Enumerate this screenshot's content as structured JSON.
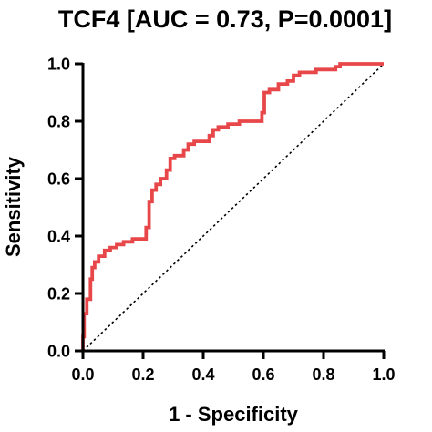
{
  "chart_data": {
    "type": "line",
    "title": "TCF4 [AUC = 0.73, P=0.0001]",
    "xlabel": "1 - Specificity",
    "ylabel": "Sensitivity",
    "xlim": [
      0,
      1
    ],
    "ylim": [
      0,
      1
    ],
    "x_ticks": [
      "0.0",
      "0.2",
      "0.4",
      "0.6",
      "0.8",
      "1.0"
    ],
    "y_ticks": [
      "0.0",
      "0.2",
      "0.4",
      "0.6",
      "0.8",
      "1.0"
    ],
    "grid": false,
    "series": [
      {
        "color": "#e8474a",
        "style": "step",
        "points": [
          [
            0.0,
            0.0
          ],
          [
            0.0,
            0.05
          ],
          [
            0.004,
            0.05
          ],
          [
            0.004,
            0.13
          ],
          [
            0.013,
            0.13
          ],
          [
            0.013,
            0.18
          ],
          [
            0.025,
            0.18
          ],
          [
            0.025,
            0.25
          ],
          [
            0.031,
            0.25
          ],
          [
            0.031,
            0.29
          ],
          [
            0.039,
            0.29
          ],
          [
            0.039,
            0.31
          ],
          [
            0.052,
            0.31
          ],
          [
            0.052,
            0.33
          ],
          [
            0.072,
            0.33
          ],
          [
            0.072,
            0.35
          ],
          [
            0.091,
            0.35
          ],
          [
            0.091,
            0.36
          ],
          [
            0.112,
            0.36
          ],
          [
            0.112,
            0.37
          ],
          [
            0.135,
            0.37
          ],
          [
            0.135,
            0.38
          ],
          [
            0.165,
            0.38
          ],
          [
            0.165,
            0.39
          ],
          [
            0.21,
            0.39
          ],
          [
            0.21,
            0.43
          ],
          [
            0.22,
            0.43
          ],
          [
            0.22,
            0.52
          ],
          [
            0.23,
            0.52
          ],
          [
            0.23,
            0.56
          ],
          [
            0.243,
            0.56
          ],
          [
            0.243,
            0.58
          ],
          [
            0.258,
            0.58
          ],
          [
            0.258,
            0.6
          ],
          [
            0.278,
            0.6
          ],
          [
            0.278,
            0.63
          ],
          [
            0.29,
            0.63
          ],
          [
            0.29,
            0.67
          ],
          [
            0.305,
            0.67
          ],
          [
            0.305,
            0.68
          ],
          [
            0.335,
            0.68
          ],
          [
            0.335,
            0.7
          ],
          [
            0.35,
            0.7
          ],
          [
            0.35,
            0.72
          ],
          [
            0.37,
            0.72
          ],
          [
            0.37,
            0.73
          ],
          [
            0.42,
            0.73
          ],
          [
            0.42,
            0.75
          ],
          [
            0.433,
            0.75
          ],
          [
            0.433,
            0.77
          ],
          [
            0.45,
            0.77
          ],
          [
            0.45,
            0.78
          ],
          [
            0.482,
            0.78
          ],
          [
            0.482,
            0.79
          ],
          [
            0.52,
            0.79
          ],
          [
            0.52,
            0.8
          ],
          [
            0.595,
            0.8
          ],
          [
            0.595,
            0.83
          ],
          [
            0.603,
            0.83
          ],
          [
            0.603,
            0.9
          ],
          [
            0.62,
            0.9
          ],
          [
            0.62,
            0.91
          ],
          [
            0.65,
            0.91
          ],
          [
            0.65,
            0.93
          ],
          [
            0.68,
            0.93
          ],
          [
            0.68,
            0.94
          ],
          [
            0.7,
            0.94
          ],
          [
            0.7,
            0.96
          ],
          [
            0.72,
            0.96
          ],
          [
            0.72,
            0.97
          ],
          [
            0.775,
            0.97
          ],
          [
            0.775,
            0.98
          ],
          [
            0.84,
            0.98
          ],
          [
            0.84,
            0.99
          ],
          [
            0.855,
            0.99
          ],
          [
            0.855,
            1.0
          ],
          [
            1.0,
            1.0
          ]
        ]
      }
    ],
    "reference_line": {
      "style": "dotted",
      "color": "#000000",
      "points": [
        [
          0,
          0
        ],
        [
          1,
          1
        ]
      ]
    }
  }
}
